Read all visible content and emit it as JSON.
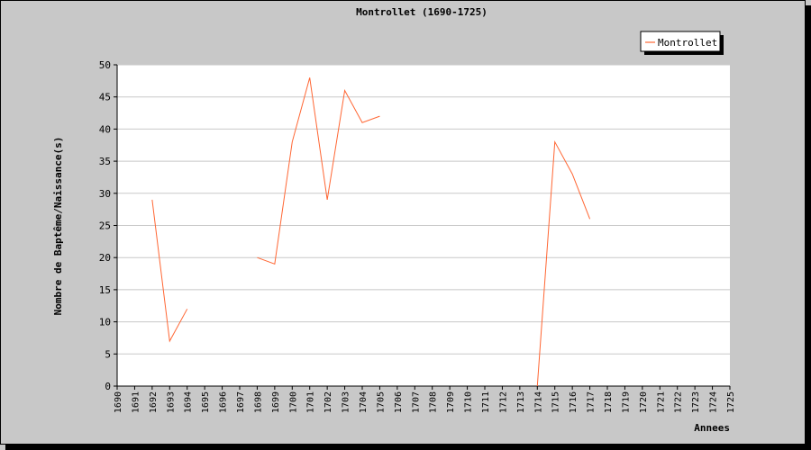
{
  "chart_data": {
    "type": "line",
    "title": "Montrollet (1690-1725)",
    "xlabel": "Annees",
    "ylabel": "Nombre de Baptême/Naissance(s)",
    "ylim": [
      0,
      50
    ],
    "yticks": [
      0,
      5,
      10,
      15,
      20,
      25,
      30,
      35,
      40,
      45,
      50
    ],
    "categories": [
      "1690",
      "1691",
      "1692",
      "1693",
      "1694",
      "1695",
      "1696",
      "1697",
      "1698",
      "1699",
      "1700",
      "1701",
      "1702",
      "1703",
      "1704",
      "1705",
      "1706",
      "1707",
      "1708",
      "1709",
      "1710",
      "1711",
      "1712",
      "1713",
      "1714",
      "1715",
      "1716",
      "1717",
      "1718",
      "1719",
      "1720",
      "1721",
      "1722",
      "1723",
      "1724",
      "1725"
    ],
    "grid": true,
    "legend_position": "top-right",
    "series": [
      {
        "name": "Montrollet",
        "color": "#ff6633",
        "values": [
          null,
          null,
          29,
          7,
          12,
          null,
          null,
          null,
          20,
          19,
          38,
          48,
          29,
          46,
          41,
          42,
          null,
          null,
          null,
          null,
          null,
          null,
          null,
          null,
          0,
          38,
          33,
          26,
          null,
          null,
          null,
          null,
          null,
          null,
          null,
          null
        ]
      }
    ]
  }
}
